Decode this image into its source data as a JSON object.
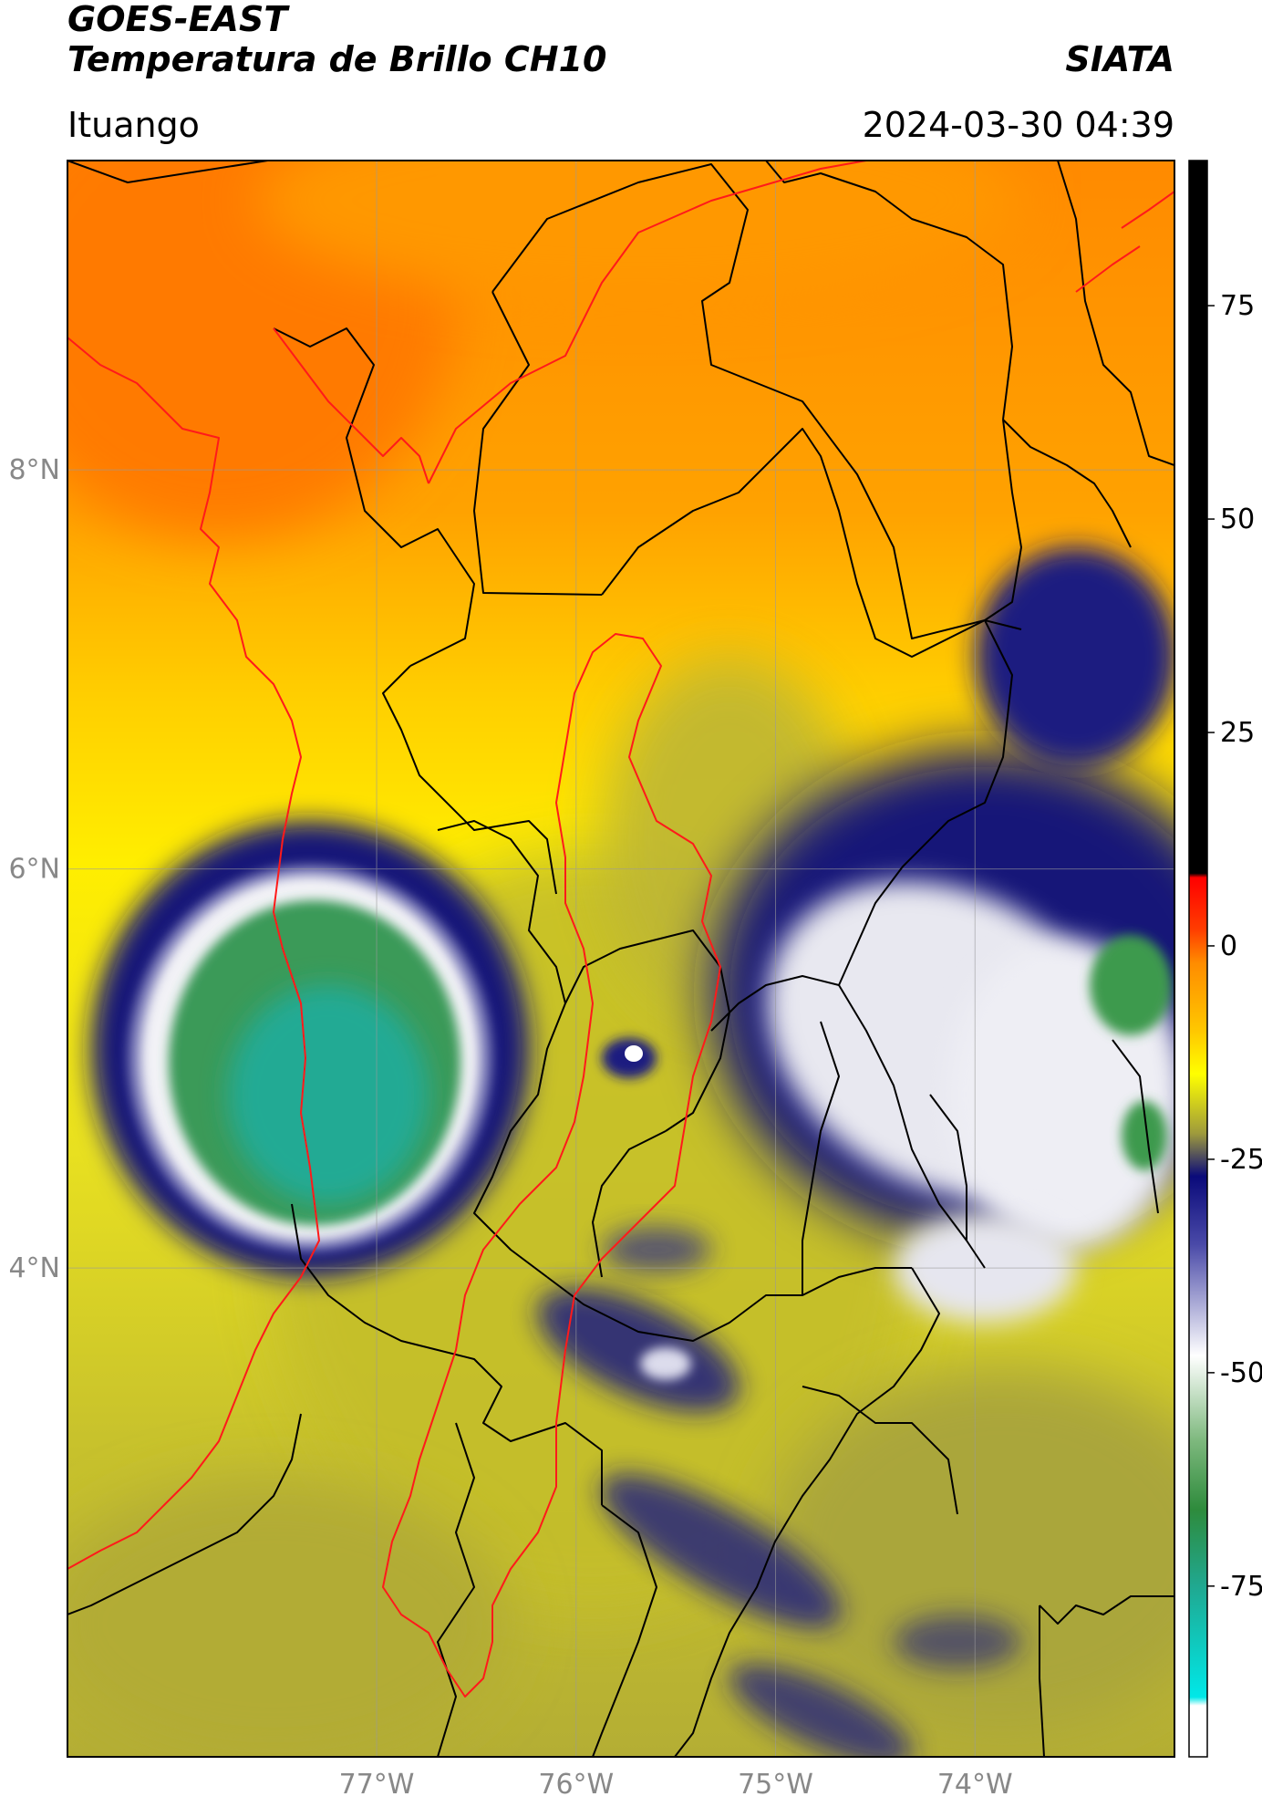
{
  "header": {
    "title_line1": "GOES-EAST",
    "title_line2": "Temperatura de Brillo CH10",
    "agency": "SIATA",
    "location": "Ituango",
    "timestamp": "2024-03-30 04:39"
  },
  "map": {
    "lon_range": [
      -78.55,
      -73.0
    ],
    "lat_range": [
      1.55,
      9.55
    ],
    "lon_ticks": [
      {
        "value": -77,
        "label": "77°W"
      },
      {
        "value": -76,
        "label": "76°W"
      },
      {
        "value": -75,
        "label": "75°W"
      },
      {
        "value": -74,
        "label": "74°W"
      }
    ],
    "lat_ticks": [
      {
        "value": 8,
        "label": "8°N"
      },
      {
        "value": 6,
        "label": "6°N"
      },
      {
        "value": 4,
        "label": "4°N"
      }
    ],
    "colors": {
      "warm_orange": "#ff8a00",
      "orange": "#ffa600",
      "yellow": "#ffee00",
      "olive": "#b9b432",
      "navy": "#1a1a80",
      "white_cloud": "#eeeef2",
      "green": "#3c9a4e",
      "teal": "#2aa896",
      "border_black": "#000000",
      "border_red": "#ff0000"
    },
    "icons": [
      "state-border-lines",
      "coastline",
      "basin-outline"
    ]
  },
  "colorbar": {
    "range": [
      -95,
      92
    ],
    "ticks": [
      {
        "value": 75,
        "label": "75"
      },
      {
        "value": 50,
        "label": "50"
      },
      {
        "value": 25,
        "label": "25"
      },
      {
        "value": 0,
        "label": "0"
      },
      {
        "value": -25,
        "label": "-25"
      },
      {
        "value": -50,
        "label": "-50"
      },
      {
        "value": -75,
        "label": "-75"
      }
    ],
    "stops": [
      {
        "value": 92,
        "color": "#000000"
      },
      {
        "value": 8.5,
        "color": "#000000"
      },
      {
        "value": 8,
        "color": "#ff0000"
      },
      {
        "value": 2,
        "color": "#ff3c00"
      },
      {
        "value": -2,
        "color": "#ff8c00"
      },
      {
        "value": -10,
        "color": "#ffc800"
      },
      {
        "value": -15,
        "color": "#ffff00"
      },
      {
        "value": -22,
        "color": "#9e9a3c"
      },
      {
        "value": -27,
        "color": "#0a0a7a"
      },
      {
        "value": -35,
        "color": "#4a4aa8"
      },
      {
        "value": -48,
        "color": "#ffffff"
      },
      {
        "value": -58,
        "color": "#7db87d"
      },
      {
        "value": -66,
        "color": "#2e8b3c"
      },
      {
        "value": -75,
        "color": "#20a890"
      },
      {
        "value": -88,
        "color": "#00e8e8"
      },
      {
        "value": -89,
        "color": "#ffffff"
      },
      {
        "value": -95,
        "color": "#ffffff"
      }
    ]
  }
}
